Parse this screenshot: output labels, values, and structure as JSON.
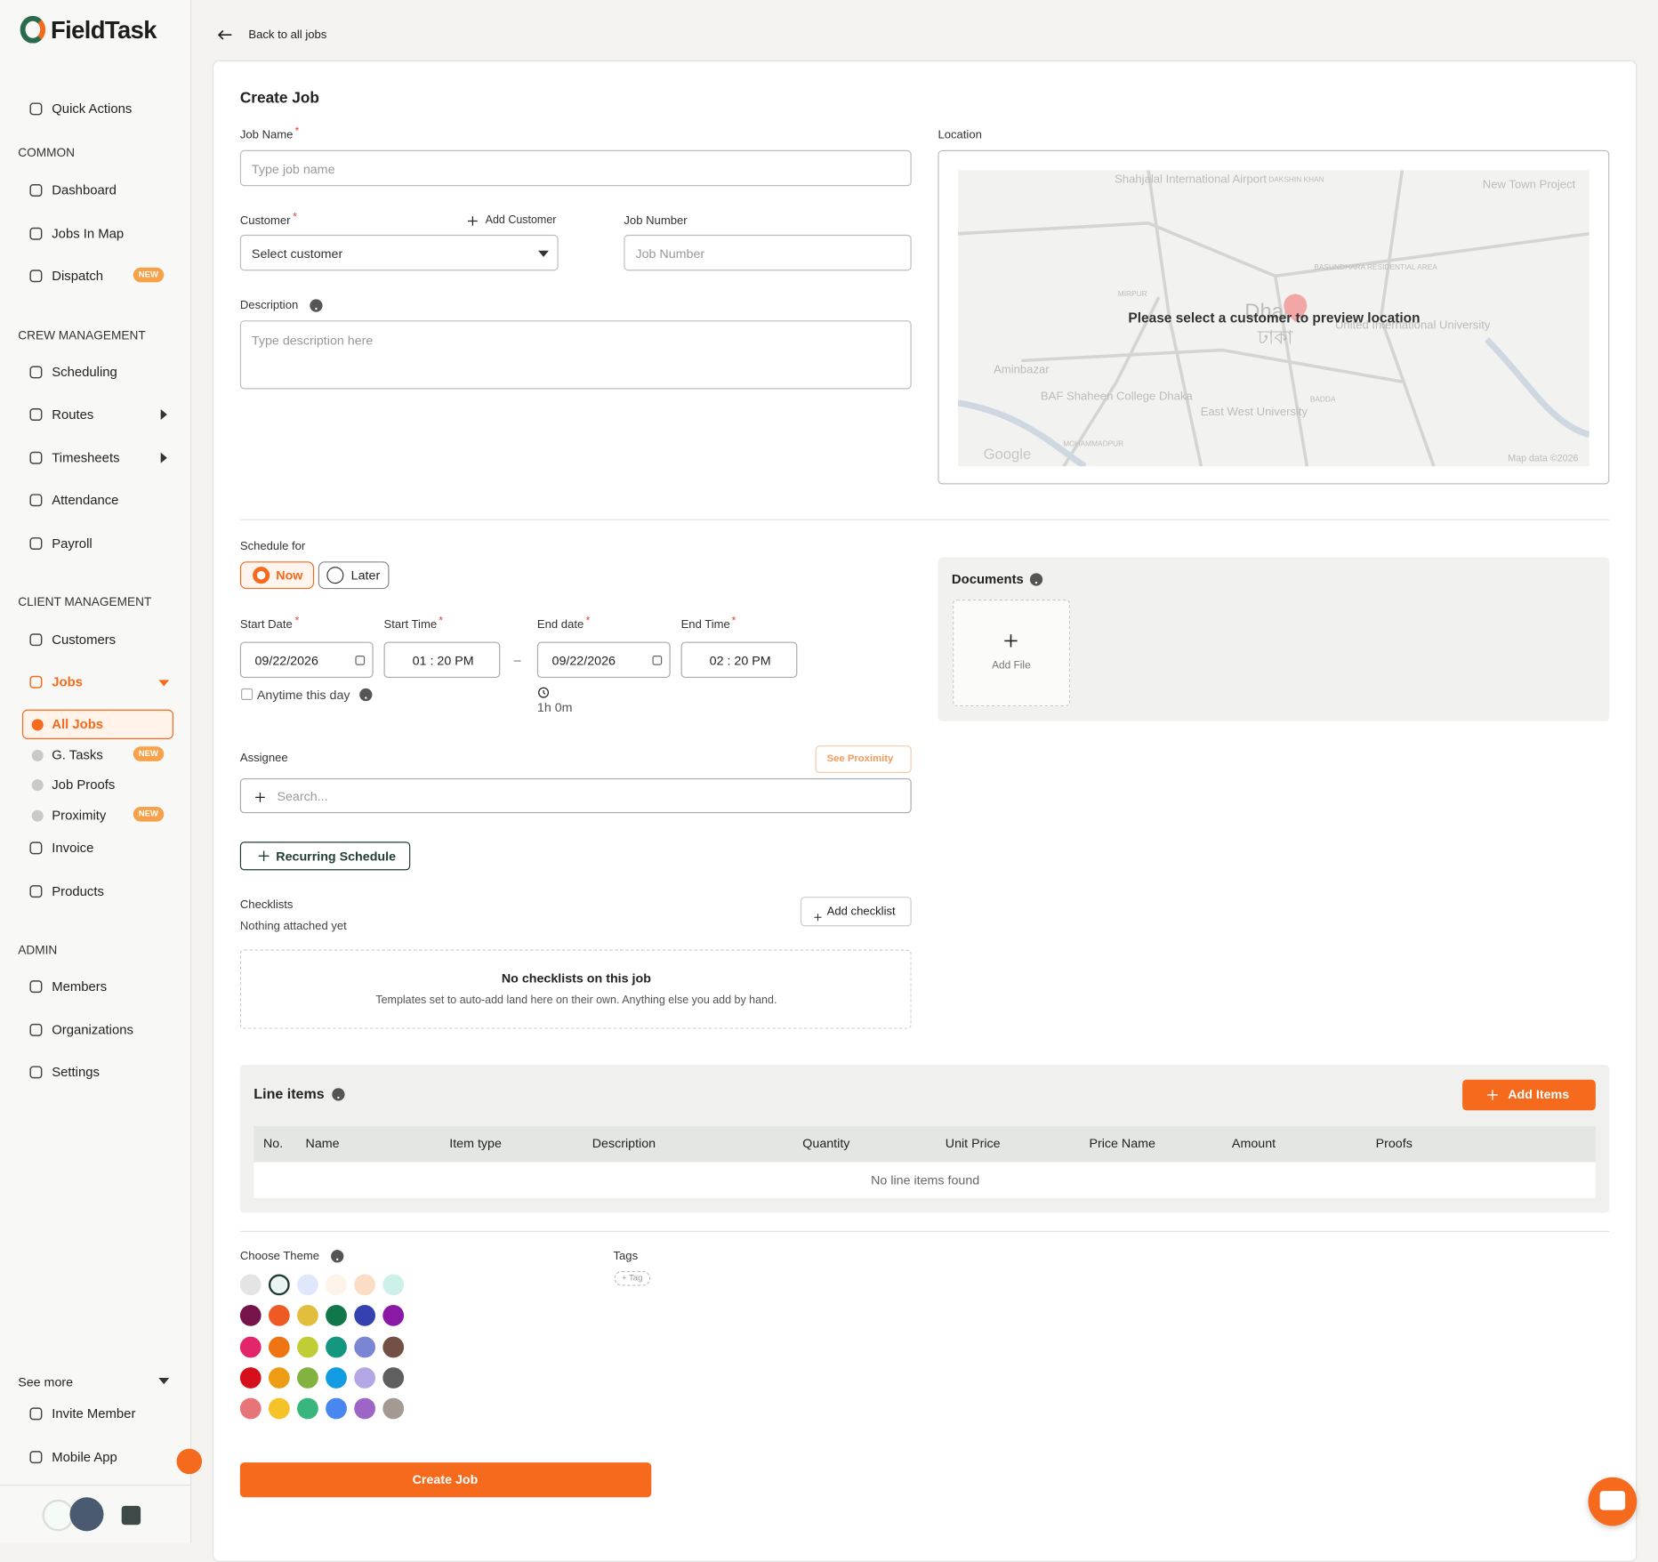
{
  "sidebar": {
    "brand": "FieldTask",
    "quick_actions": "Quick Actions",
    "sections": [
      {
        "title": "COMMON",
        "items": [
          {
            "label": "Dashboard"
          },
          {
            "label": "Jobs In Map"
          },
          {
            "label": "Dispatch",
            "badge": "NEW"
          }
        ]
      },
      {
        "title": "CREW MANAGEMENT",
        "items": [
          {
            "label": "Scheduling"
          },
          {
            "label": "Routes"
          },
          {
            "label": "Timesheets"
          },
          {
            "label": "Attendance"
          },
          {
            "label": "Payroll"
          }
        ]
      },
      {
        "title": "CLIENT MANAGEMENT",
        "items": [
          {
            "label": "Customers"
          },
          {
            "label": "Jobs",
            "children": [
              {
                "label": "All Jobs"
              },
              {
                "label": "G. Tasks",
                "badge": "NEW"
              },
              {
                "label": "Job Proofs"
              },
              {
                "label": "Proximity",
                "badge": "NEW"
              }
            ]
          },
          {
            "label": "Invoice"
          },
          {
            "label": "Products"
          }
        ]
      },
      {
        "title": "ADMIN",
        "items": [
          {
            "label": "Members"
          },
          {
            "label": "Organizations"
          },
          {
            "label": "Settings"
          }
        ]
      }
    ],
    "see_more": "See more",
    "footer_items": [
      "Invite Member",
      "Mobile App"
    ]
  },
  "header": {
    "back": "Back to all jobs"
  },
  "form": {
    "title": "Create Job",
    "required_mark": "*",
    "job_name": {
      "label": "Job Name",
      "placeholder": "Type job name"
    },
    "customer": {
      "label": "Customer",
      "add": "Add Customer",
      "placeholder": "Select customer"
    },
    "job_number": {
      "label": "Job Number",
      "placeholder": "Job Number"
    },
    "description": {
      "label": "Description",
      "placeholder": "Type description here"
    },
    "location": {
      "label": "Location",
      "message": "Please select a customer to preview location",
      "map_labels": [
        "Dhaka",
        "ঢাকা",
        "Aminbazar",
        "New Town Project",
        "United International University",
        "East West University",
        "BAF Shaheen College Dhaka",
        "Shahjalal International Airport",
        "DAKSHIN KHAN",
        "BASUNDHARA RESIDENTIAL AREA",
        "MIRPUR",
        "BADDA",
        "MOHAMMADPUR"
      ],
      "attribution": "Map data ©2026",
      "logo": "Google"
    },
    "schedule": {
      "label": "Schedule for",
      "options": [
        "Now",
        "Later"
      ],
      "start_date": {
        "label": "Start Date",
        "value": "09/22/2026"
      },
      "start_time": {
        "label": "Start Time",
        "value": "01 : 20 PM"
      },
      "separator": "–",
      "end_date": {
        "label": "End date",
        "value": "09/22/2026"
      },
      "end_time": {
        "label": "End Time",
        "value": "02 : 20 PM"
      },
      "anytime": "Anytime this day",
      "duration": "1h 0m"
    },
    "documents": {
      "title": "Documents",
      "add": "Add File"
    },
    "assignee": {
      "label": "Assignee",
      "proximity": "See Proximity",
      "placeholder": "Search..."
    },
    "recurring": "Recurring Schedule",
    "checklists": {
      "label": "Checklists",
      "status": "Nothing attached yet",
      "add": "Add checklist",
      "empty_title": "No checklists on this job",
      "empty_text": "Templates set to auto-add land here on their own. Anything else you add by hand."
    },
    "line_items": {
      "title": "Line items",
      "add": "Add Items",
      "columns": [
        "No.",
        "Name",
        "Item type",
        "Description",
        "Quantity",
        "Unit Price",
        "Price Name",
        "Amount",
        "Proofs"
      ],
      "empty": "No line items found"
    },
    "theme": {
      "label": "Choose Theme"
    },
    "tags": {
      "label": "Tags",
      "add": "+ Tag"
    },
    "submit": "Create Job"
  }
}
